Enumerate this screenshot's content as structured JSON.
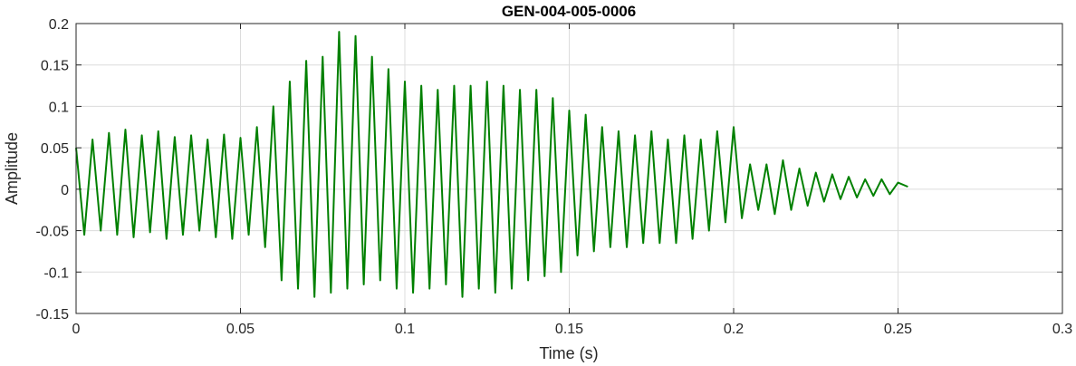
{
  "chart_data": {
    "type": "line",
    "title": "GEN-004-005-0006",
    "xlabel": "Time (s)",
    "ylabel": "Amplitude",
    "xlim": [
      0,
      0.3
    ],
    "ylim": [
      -0.15,
      0.2
    ],
    "grid": true,
    "x_ticks": [
      0,
      0.05,
      0.1,
      0.15,
      0.2,
      0.25,
      0.3
    ],
    "x_tick_labels": [
      "0",
      "0.05",
      "0.1",
      "0.15",
      "0.2",
      "0.25",
      "0.3"
    ],
    "y_ticks": [
      -0.15,
      -0.1,
      -0.05,
      0,
      0.05,
      0.1,
      0.15,
      0.2
    ],
    "y_tick_labels": [
      "-0.15",
      "-0.1",
      "-0.05",
      "0",
      "0.05",
      "0.1",
      "0.15",
      "0.2"
    ],
    "series": [
      {
        "color": "#008000",
        "x": [
          0,
          0.0025,
          0.005,
          0.0075,
          0.01,
          0.0125,
          0.015,
          0.0175,
          0.02,
          0.0225,
          0.025,
          0.0275,
          0.03,
          0.0325,
          0.035,
          0.0375,
          0.04,
          0.0425,
          0.045,
          0.0475,
          0.05,
          0.0525,
          0.055,
          0.0575,
          0.06,
          0.0625,
          0.065,
          0.0675,
          0.07,
          0.0725,
          0.075,
          0.0775,
          0.08,
          0.0825,
          0.085,
          0.0875,
          0.09,
          0.0925,
          0.095,
          0.0975,
          0.1,
          0.1025,
          0.105,
          0.1075,
          0.11,
          0.1125,
          0.115,
          0.1175,
          0.12,
          0.1225,
          0.125,
          0.1275,
          0.13,
          0.1325,
          0.135,
          0.1375,
          0.14,
          0.1425,
          0.145,
          0.1475,
          0.15,
          0.1525,
          0.155,
          0.1575,
          0.16,
          0.1625,
          0.165,
          0.1675,
          0.17,
          0.1725,
          0.175,
          0.1775,
          0.18,
          0.1825,
          0.185,
          0.1875,
          0.19,
          0.1925,
          0.195,
          0.1975,
          0.2,
          0.2025,
          0.205,
          0.2075,
          0.21,
          0.2125,
          0.215,
          0.2175,
          0.22,
          0.2225,
          0.225,
          0.2275,
          0.23,
          0.2325,
          0.235,
          0.2375,
          0.24,
          0.2425,
          0.245,
          0.2475,
          0.25,
          0.253
        ],
        "y": [
          0.05,
          -0.055,
          0.06,
          -0.05,
          0.068,
          -0.055,
          0.072,
          -0.058,
          0.065,
          -0.052,
          0.07,
          -0.06,
          0.063,
          -0.055,
          0.065,
          -0.05,
          0.06,
          -0.058,
          0.066,
          -0.06,
          0.062,
          -0.055,
          0.075,
          -0.07,
          0.1,
          -0.11,
          0.13,
          -0.12,
          0.155,
          -0.13,
          0.16,
          -0.125,
          0.19,
          -0.12,
          0.185,
          -0.115,
          0.16,
          -0.11,
          0.145,
          -0.12,
          0.13,
          -0.125,
          0.125,
          -0.12,
          0.12,
          -0.115,
          0.125,
          -0.13,
          0.125,
          -0.12,
          0.13,
          -0.125,
          0.125,
          -0.12,
          0.12,
          -0.11,
          0.12,
          -0.105,
          0.11,
          -0.1,
          0.095,
          -0.08,
          0.09,
          -0.075,
          0.075,
          -0.07,
          0.07,
          -0.07,
          0.065,
          -0.065,
          0.07,
          -0.065,
          0.06,
          -0.065,
          0.065,
          -0.06,
          0.06,
          -0.05,
          0.07,
          -0.04,
          0.075,
          -0.035,
          0.03,
          -0.025,
          0.03,
          -0.03,
          0.035,
          -0.025,
          0.025,
          -0.02,
          0.02,
          -0.015,
          0.018,
          -0.012,
          0.015,
          -0.01,
          0.012,
          -0.008,
          0.012,
          -0.006,
          0.008,
          0.003
        ]
      }
    ]
  }
}
